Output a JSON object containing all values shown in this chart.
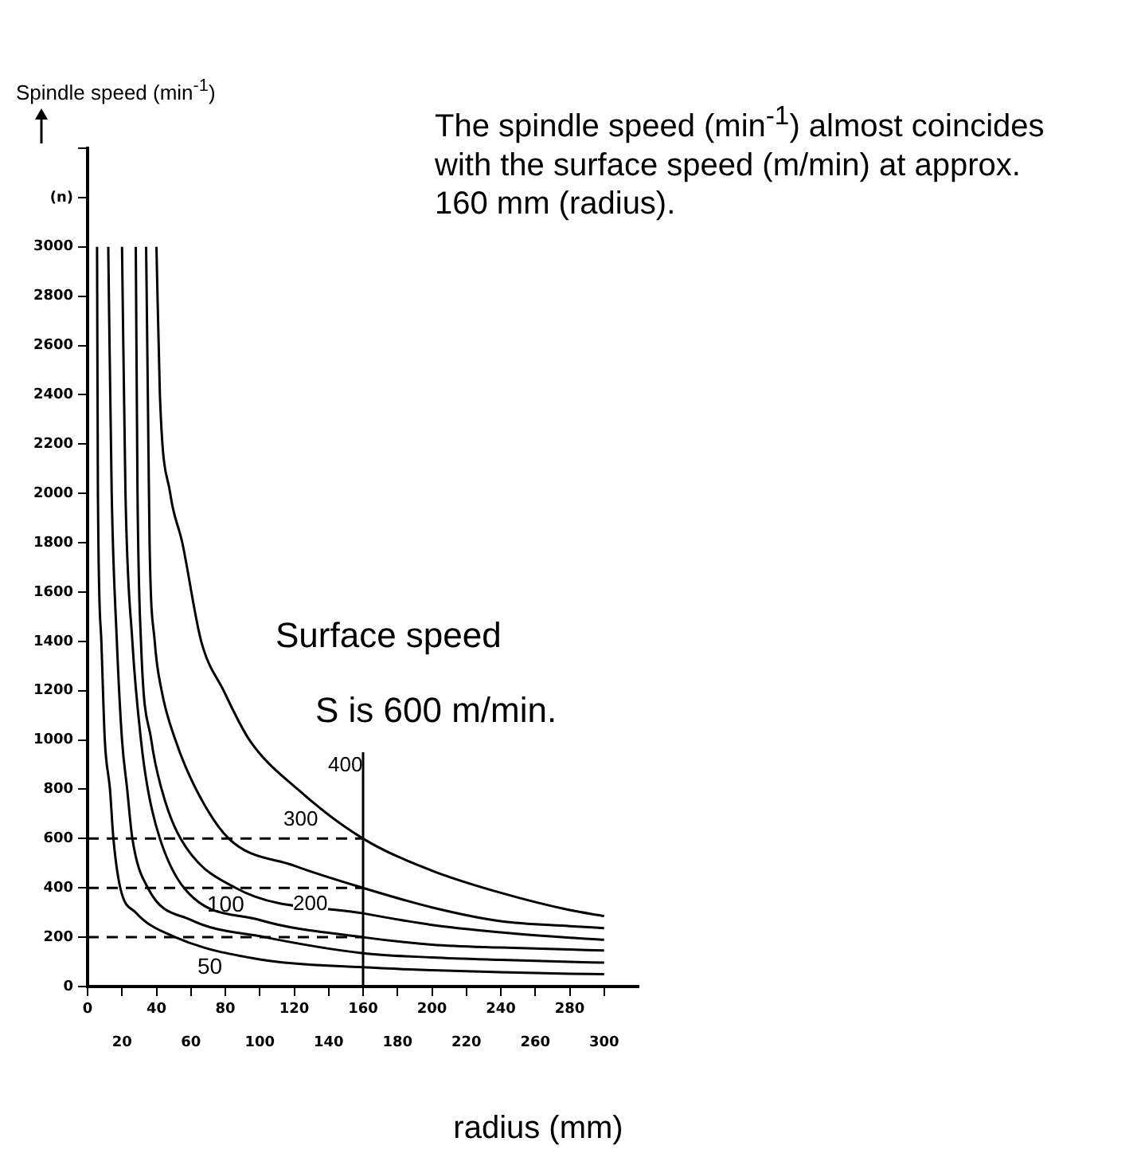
{
  "chart_data": {
    "type": "line",
    "xlabel": "radius (mm)",
    "ylabel": "Spindle speed (min$^{-1}$)",
    "annotations": [
      "The spindle speed (min$^{-1}$) almost coincides with the surface speed (m/min) at approx. 160 mm (radius).",
      "Surface speed",
      "S is 600 m/min.",
      "400",
      "300",
      "100",
      "200",
      "50"
    ],
    "series": [
      {
        "color": "#000000",
        "x": [
          40,
          42,
          48,
          55,
          66,
          79,
          94,
          122,
          160,
          200,
          240,
          280,
          300
        ],
        "values": [
          3000,
          2400,
          2000,
          1800,
          1400,
          1200,
          1000,
          800,
          600,
          470,
          380,
          310,
          286
        ]
      },
      {
        "color": "#000000",
        "x": [
          34,
          35,
          36,
          39,
          43,
          51,
          63,
          82,
          120,
          160,
          200,
          240,
          280,
          300
        ],
        "values": [
          3000,
          2400,
          1800,
          1400,
          1200,
          1000,
          800,
          600,
          490,
          400,
          321,
          265,
          245,
          237
        ]
      },
      {
        "color": "#000000",
        "x": [
          28,
          29,
          31,
          37,
          43,
          54,
          86,
          160,
          200,
          240,
          280,
          300
        ],
        "values": [
          3000,
          2000,
          1400,
          1000,
          800,
          600,
          400,
          297,
          250,
          220,
          198,
          190
        ]
      },
      {
        "color": "#000000",
        "x": [
          20,
          22,
          26,
          31,
          35,
          42,
          56,
          100,
          160,
          200,
          240,
          280,
          300
        ],
        "values": [
          3000,
          2000,
          1400,
          1000,
          800,
          600,
          400,
          270,
          200,
          170,
          158,
          150,
          146
        ]
      },
      {
        "color": "#000000",
        "x": [
          12,
          14,
          17,
          20,
          23,
          26,
          35,
          60,
          103,
          160,
          200,
          240,
          280,
          300
        ],
        "values": [
          3000,
          2000,
          1400,
          1000,
          800,
          600,
          400,
          270,
          200,
          135,
          118,
          108,
          100,
          97
        ]
      },
      {
        "color": "#000000",
        "x": [
          5.5,
          6,
          8,
          10,
          13,
          15,
          19,
          28,
          51,
          100,
          160,
          200,
          240,
          280,
          300
        ],
        "values": [
          3000,
          2000,
          1400,
          1000,
          800,
          600,
          400,
          300,
          200,
          110,
          78,
          66,
          58,
          52,
          50
        ]
      },
      {
        "color": "#000000",
        "line_style": "dashed",
        "x": [
          0,
          160
        ],
        "values": [
          600,
          600
        ]
      },
      {
        "color": "#000000",
        "line_style": "dashed",
        "x": [
          0,
          160
        ],
        "values": [
          400,
          400
        ]
      },
      {
        "color": "#000000",
        "line_style": "dashed",
        "x": [
          0,
          160
        ],
        "values": [
          200,
          200
        ]
      },
      {
        "color": "#000000",
        "x": [
          160,
          160
        ],
        "values": [
          0,
          950
        ]
      }
    ],
    "xlim": [
      0,
      320
    ],
    "xticks": [
      0,
      {
        "value": 20,
        "label": null
      },
      40,
      {
        "value": 60,
        "label": null
      },
      80,
      {
        "value": 100,
        "label": null
      },
      120,
      {
        "value": 140,
        "label": null
      },
      160,
      {
        "value": 180,
        "label": null
      },
      200,
      {
        "value": 220,
        "label": null
      },
      240,
      {
        "value": 260,
        "label": null
      },
      280,
      {
        "value": 300,
        "label": null
      }
    ],
    "x2lim": [
      0,
      320
    ],
    "x2ticks": [
      20,
      60,
      100,
      140,
      180,
      220,
      260,
      300
    ],
    "ylim": [
      0,
      3400
    ],
    "yticks": [
      0,
      200,
      400,
      600,
      800,
      1000,
      1200,
      1400,
      1600,
      1800,
      2000,
      2200,
      2400,
      2600,
      2800,
      3000,
      {
        "value": 3200,
        "label": "(n)"
      },
      {
        "value": 3400,
        "label": null
      }
    ],
    "grid": false,
    "legend": false,
    "marker": "none",
    "line_style": "solid"
  }
}
